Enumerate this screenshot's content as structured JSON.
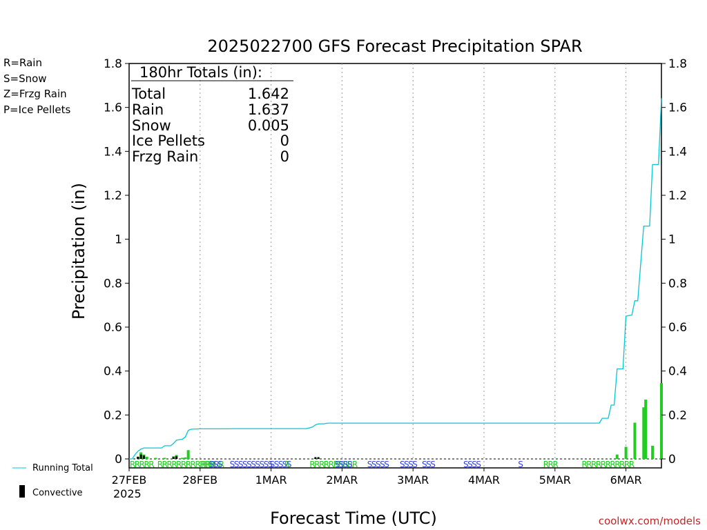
{
  "chart_data": {
    "type": "bar",
    "title": "2025022700 GFS Forecast Precipitation SPAR",
    "ylabel": "Precipitation (in)",
    "xlabel": "Forecast Time (UTC)",
    "ylim": [
      0,
      1.8
    ],
    "xlim_hours": [
      0,
      180
    ],
    "yticks": [
      0,
      0.2,
      0.4,
      0.6,
      0.8,
      1,
      1.2,
      1.4,
      1.6,
      1.8
    ],
    "ytick_labels": [
      "0",
      "0.2",
      "0.4",
      "0.6",
      "0.8",
      "1",
      "1.2",
      "1.4",
      "1.6",
      "1.8"
    ],
    "x_tick_labels": [
      "27FEB",
      "28FEB",
      "1MAR",
      "2MAR",
      "3MAR",
      "4MAR",
      "5MAR",
      "6MAR"
    ],
    "x_tick_hours": [
      0,
      24,
      48,
      72,
      96,
      120,
      144,
      168
    ],
    "year_label": "2025",
    "grid": "vertical dotted",
    "totals_box": {
      "header": "180hr Totals (in):",
      "rows": [
        {
          "label": "Total",
          "value": "1.642"
        },
        {
          "label": "Rain",
          "value": "1.637"
        },
        {
          "label": "Snow",
          "value": "0.005"
        },
        {
          "label": "Ice Pellets",
          "value": "0"
        },
        {
          "label": "Frzg Rain",
          "value": "0"
        }
      ]
    },
    "ptype_legend": [
      {
        "label": "R=Rain",
        "color": "#22cc22"
      },
      {
        "label": "S=Snow",
        "color": "#3344dd"
      },
      {
        "label": "Z=Frzg Rain",
        "color": "#ee8833"
      },
      {
        "label": "P=Ice Pellets",
        "color": "#ee2288"
      }
    ],
    "series_legend": [
      {
        "label": "Running Total",
        "color": "#00c8d2"
      },
      {
        "label": "Convective",
        "color": "#000000"
      }
    ],
    "precip_bars": {
      "x_hours": [
        3,
        4,
        5,
        6,
        9,
        12,
        15,
        16,
        18,
        19,
        20,
        63,
        64,
        165,
        168,
        171,
        174,
        177,
        180
      ],
      "values": [
        0.01,
        0.03,
        0.02,
        0.01,
        0.005,
        0.005,
        0.012,
        0.018,
        0.005,
        0.007,
        0.04,
        0.003,
        0.003,
        0.02,
        0.055,
        0.165,
        0.235,
        0.06,
        0.345
      ]
    },
    "extra_bars": {
      "x_hours": [
        177
      ],
      "values": [
        0.27
      ]
    },
    "convective_bars": {
      "x_hours": [
        3,
        4,
        5,
        15,
        16,
        63,
        64
      ],
      "values": [
        0.01,
        0.02,
        0.015,
        0.008,
        0.012,
        0.008,
        0.008
      ]
    },
    "running_total": {
      "x_hours": [
        0,
        1,
        2,
        3,
        4,
        5,
        6,
        9,
        11,
        12,
        14,
        15,
        16,
        18,
        19,
        20,
        21,
        24,
        27,
        30,
        33,
        36,
        48,
        60,
        62,
        63,
        64,
        66,
        67,
        68,
        72,
        84,
        96,
        108,
        120,
        132,
        144,
        156,
        159,
        160,
        162,
        163,
        164,
        165,
        166,
        167,
        168,
        170,
        171,
        172,
        174,
        175,
        176,
        177,
        178,
        179,
        180
      ],
      "values": [
        0.0,
        0.0,
        0.02,
        0.035,
        0.045,
        0.05,
        0.05,
        0.05,
        0.05,
        0.06,
        0.06,
        0.07,
        0.085,
        0.09,
        0.1,
        0.13,
        0.135,
        0.137,
        0.137,
        0.137,
        0.137,
        0.138,
        0.138,
        0.138,
        0.145,
        0.155,
        0.16,
        0.16,
        0.163,
        0.163,
        0.163,
        0.163,
        0.163,
        0.163,
        0.163,
        0.163,
        0.163,
        0.163,
        0.163,
        0.185,
        0.185,
        0.245,
        0.245,
        0.41,
        0.41,
        0.41,
        0.65,
        0.655,
        0.72,
        0.72,
        1.06,
        1.06,
        1.06,
        1.34,
        1.34,
        1.34,
        1.642
      ]
    },
    "ptype_strip": [
      {
        "text": "RRRRR",
        "x_hour": 0.2,
        "color": "#22cc22"
      },
      {
        "text": "RRRRRRRRRRRRRR",
        "x_hour": 9.5,
        "color": "#22cc22"
      },
      {
        "text": "RRR",
        "x_hour": 24.3,
        "color": "#22cc22"
      },
      {
        "text": "SSS",
        "x_hour": 27.0,
        "color": "#3344dd"
      },
      {
        "text": "SSSSSSSSSS",
        "x_hour": 34.0,
        "color": "#3344dd"
      },
      {
        "text": "SSSSS",
        "x_hour": 47.5,
        "color": "#3344dd"
      },
      {
        "text": "R",
        "x_hour": 52.5,
        "color": "#22cc22"
      },
      {
        "text": "RRRRRRRRRR",
        "x_hour": 61.0,
        "color": "#22cc22"
      },
      {
        "text": "SSSS",
        "x_hour": 69.5,
        "color": "#3344dd"
      },
      {
        "text": "SSSSS",
        "x_hour": 80.5,
        "color": "#3344dd"
      },
      {
        "text": "SSSS",
        "x_hour": 91.5,
        "color": "#3344dd"
      },
      {
        "text": "SSS",
        "x_hour": 99.0,
        "color": "#3344dd"
      },
      {
        "text": "SSSS",
        "x_hour": 113.0,
        "color": "#3344dd"
      },
      {
        "text": "S",
        "x_hour": 131.5,
        "color": "#3344dd"
      },
      {
        "text": "RRR",
        "x_hour": 140.0,
        "color": "#22cc22"
      },
      {
        "text": "RRRRRRRRRRR",
        "x_hour": 153.0,
        "color": "#22cc22"
      }
    ],
    "credit": "coolwx.com/models"
  }
}
